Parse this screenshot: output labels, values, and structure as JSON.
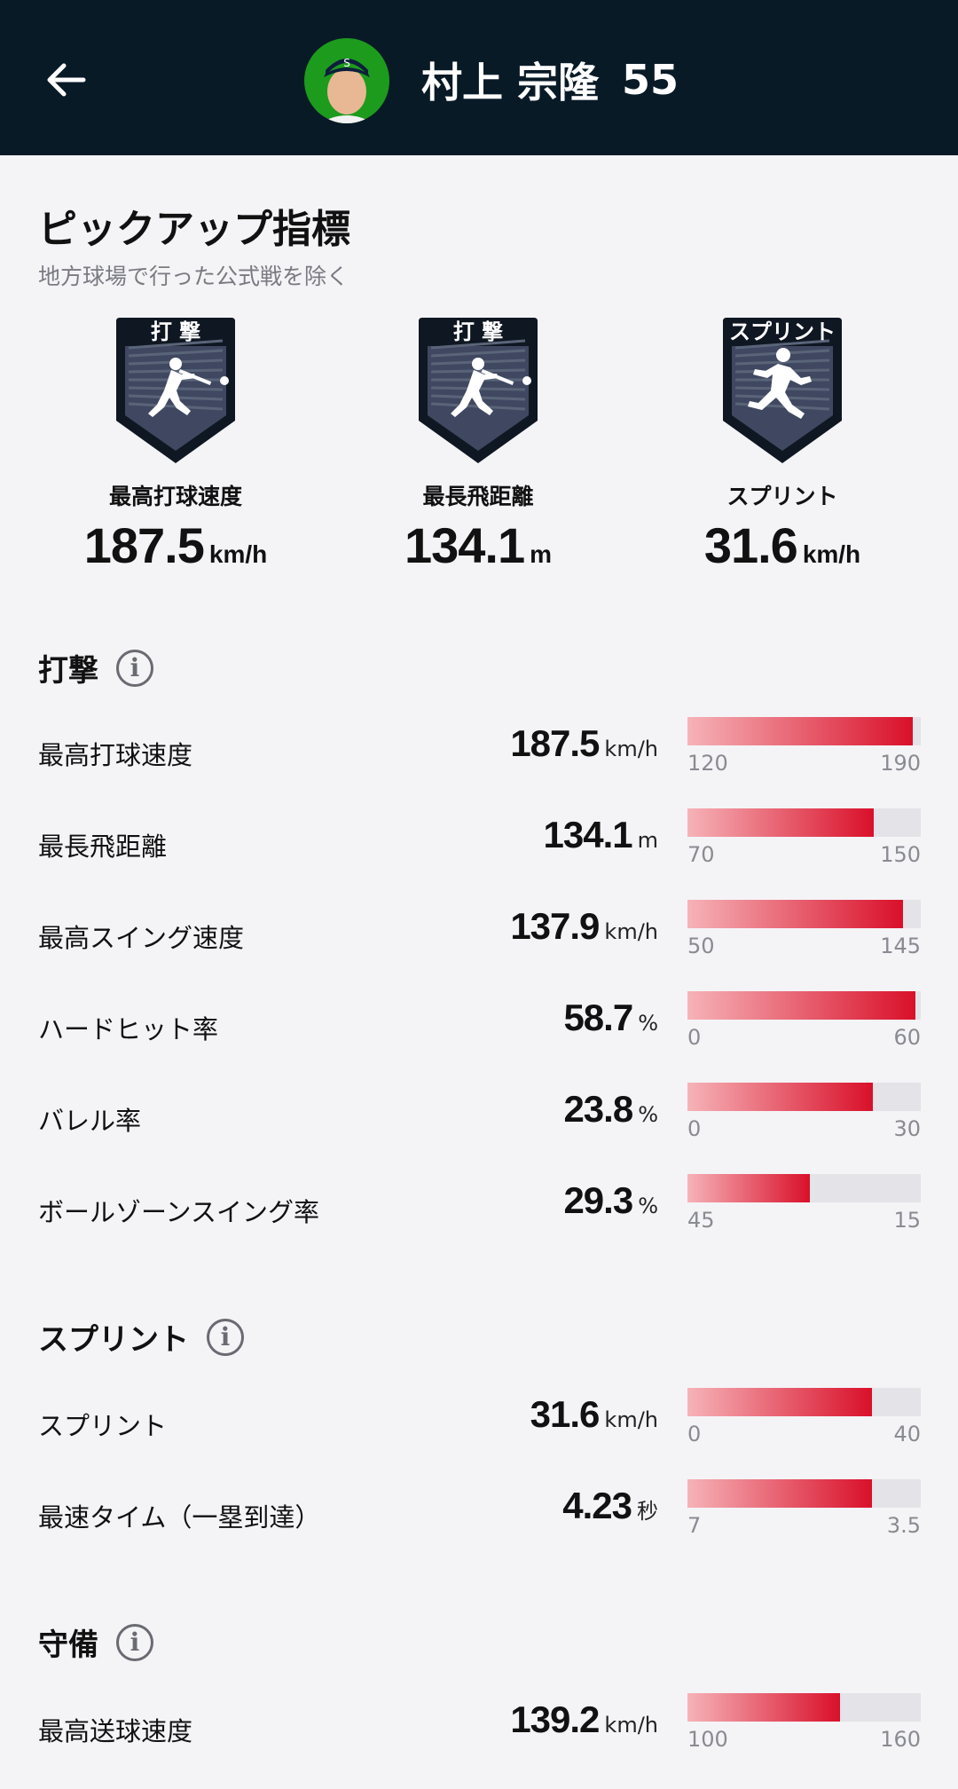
{
  "header": {
    "back_icon": "arrow-left-icon",
    "player_name": "村上 宗隆",
    "uniform_number": "55",
    "avatar_bg": "#1d9b1d"
  },
  "pickup": {
    "title": "ピックアップ指標",
    "subtitle": "地方球場で行った公式戦を除く",
    "badges": [
      {
        "badge_text": "打 撃",
        "icon": "batter-icon",
        "label": "最高打球速度",
        "value": "187.5",
        "unit": "km/h"
      },
      {
        "badge_text": "打 撃",
        "icon": "batter-icon",
        "label": "最長飛距離",
        "value": "134.1",
        "unit": "m"
      },
      {
        "badge_text": "スプリント",
        "icon": "runner-icon",
        "label": "スプリント",
        "value": "31.6",
        "unit": "km/h"
      }
    ]
  },
  "sections": [
    {
      "title": "打撃",
      "rows": [
        {
          "label": "最高打球速度",
          "value": "187.5",
          "unit": "km/h",
          "min": "120",
          "max": "190",
          "fill": 0.965
        },
        {
          "label": "最長飛距離",
          "value": "134.1",
          "unit": "m",
          "min": "70",
          "max": "150",
          "fill": 0.8
        },
        {
          "label": "最高スイング速度",
          "value": "137.9",
          "unit": "km/h",
          "min": "50",
          "max": "145",
          "fill": 0.925
        },
        {
          "label": "ハードヒット率",
          "value": "58.7",
          "unit": "%",
          "min": "0",
          "max": "60",
          "fill": 0.978
        },
        {
          "label": "バレル率",
          "value": "23.8",
          "unit": "%",
          "min": "0",
          "max": "30",
          "fill": 0.793
        },
        {
          "label": "ボールゾーンスイング率",
          "value": "29.3",
          "unit": "%",
          "min": "45",
          "max": "15",
          "fill": 0.523
        }
      ]
    },
    {
      "title": "スプリント",
      "rows": [
        {
          "label": "スプリント",
          "value": "31.6",
          "unit": "km/h",
          "min": "0",
          "max": "40",
          "fill": 0.79
        },
        {
          "label": "最速タイム（一塁到達）",
          "value": "4.23",
          "unit": "秒",
          "min": "7",
          "max": "3.5",
          "fill": 0.79
        }
      ]
    },
    {
      "title": "守備",
      "rows": [
        {
          "label": "最高送球速度",
          "value": "139.2",
          "unit": "km/h",
          "min": "100",
          "max": "160",
          "fill": 0.653
        }
      ]
    }
  ],
  "colors": {
    "header_bg": "#091a27",
    "page_bg": "#f4f4f7",
    "bar_start": "#f6b3b8",
    "bar_end": "#d9102a",
    "badge_bg": "#0f1722"
  }
}
